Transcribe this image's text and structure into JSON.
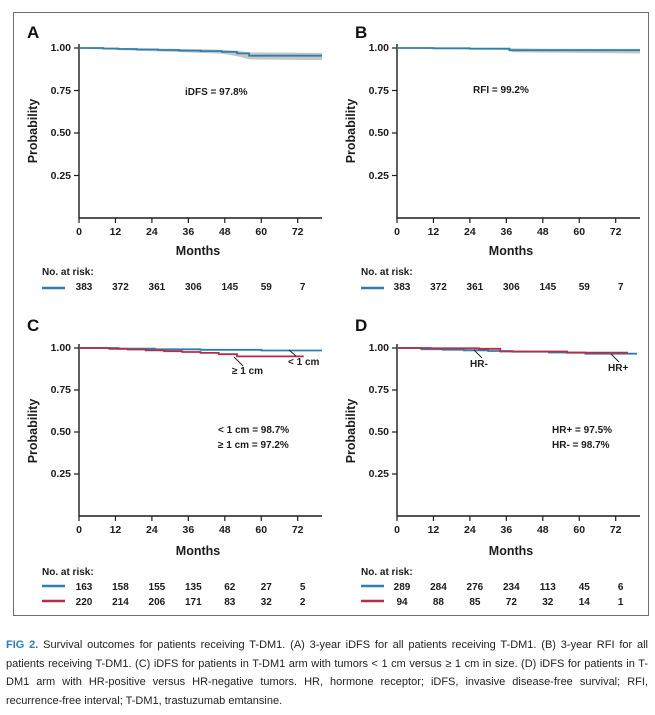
{
  "figure_caption": {
    "label": "FIG 2.",
    "text": "Survival outcomes for patients receiving T-DM1. (A) 3-year iDFS for all patients receiving T-DM1. (B) 3-year RFI for all patients receiving T-DM1. (C) iDFS for patients in T-DM1 arm with tumors < 1 cm versus ≥ 1 cm in size. (D) iDFS for patients in T-DM1 arm with HR-positive versus HR-negative tumors. HR, hormone receptor; iDFS, invasive disease-free survival; RFI, recurrence-free interval; T-DM1, trastuzumab emtansine."
  },
  "colors": {
    "blue": "#2e7fad",
    "red": "#b52e45",
    "band": "#c7c7c7",
    "axis": "#1c1c1c",
    "caption_label": "#2d7cb4",
    "text": "#1c1c1c"
  },
  "chart_data": [
    {
      "panel_label": "A",
      "type": "line",
      "chart_kind": "kaplan-meier",
      "title": "",
      "xlabel": "Months",
      "ylabel": "Probability",
      "x_ticks": [
        0,
        12,
        24,
        36,
        48,
        60,
        72
      ],
      "y_ticks": [
        "1.00",
        "0.75",
        "0.50",
        "0.25"
      ],
      "y_tick_values": [
        1.0,
        0.75,
        0.5,
        0.25
      ],
      "xlim": [
        0,
        80
      ],
      "ylim": [
        0,
        1.02
      ],
      "grid": false,
      "legend_position": "none",
      "annotation_lines": [
        "iDFS = 97.8%"
      ],
      "at_risk_label": "No. at risk:",
      "series": [
        {
          "name": "all-patients-idfs",
          "label": "",
          "color": "blue",
          "steps": [
            [
              0,
              1.0
            ],
            [
              8,
              1.0
            ],
            [
              8,
              0.997
            ],
            [
              13,
              0.997
            ],
            [
              13,
              0.994
            ],
            [
              19,
              0.994
            ],
            [
              19,
              0.991
            ],
            [
              26,
              0.991
            ],
            [
              26,
              0.988
            ],
            [
              33,
              0.988
            ],
            [
              33,
              0.985
            ],
            [
              40,
              0.985
            ],
            [
              40,
              0.982
            ],
            [
              47,
              0.982
            ],
            [
              47,
              0.977
            ],
            [
              52,
              0.977
            ],
            [
              52,
              0.968
            ],
            [
              56,
              0.968
            ],
            [
              56,
              0.955
            ],
            [
              80,
              0.955
            ]
          ],
          "ci_band": {
            "upper": [
              [
                0,
                1.0
              ],
              [
                20,
                0.999
              ],
              [
                40,
                0.993
              ],
              [
                47,
                0.99
              ],
              [
                52,
                0.984
              ],
              [
                56,
                0.974
              ],
              [
                80,
                0.971
              ]
            ],
            "lower": [
              [
                0,
                0.997
              ],
              [
                8,
                0.991
              ],
              [
                19,
                0.984
              ],
              [
                33,
                0.976
              ],
              [
                47,
                0.966
              ],
              [
                52,
                0.951
              ],
              [
                56,
                0.933
              ],
              [
                80,
                0.929
              ]
            ]
          },
          "at_risk": [
            383,
            372,
            361,
            306,
            145,
            59,
            7
          ]
        }
      ]
    },
    {
      "panel_label": "B",
      "type": "line",
      "chart_kind": "kaplan-meier",
      "title": "",
      "xlabel": "Months",
      "ylabel": "Probability",
      "x_ticks": [
        0,
        12,
        24,
        36,
        48,
        60,
        72
      ],
      "y_ticks": [
        "1.00",
        "0.75",
        "0.50",
        "0.25"
      ],
      "y_tick_values": [
        1.0,
        0.75,
        0.5,
        0.25
      ],
      "xlim": [
        0,
        80
      ],
      "ylim": [
        0,
        1.02
      ],
      "grid": false,
      "legend_position": "none",
      "annotation_lines": [
        "RFI = 99.2%"
      ],
      "at_risk_label": "No. at risk:",
      "series": [
        {
          "name": "all-patients-rfi",
          "label": "",
          "color": "blue",
          "steps": [
            [
              0,
              1.0
            ],
            [
              12,
              1.0
            ],
            [
              12,
              0.998
            ],
            [
              24,
              0.998
            ],
            [
              24,
              0.996
            ],
            [
              37,
              0.996
            ],
            [
              37,
              0.987
            ],
            [
              80,
              0.987
            ]
          ],
          "ci_band": {
            "upper": [
              [
                0,
                1.0
              ],
              [
                24,
                1.0
              ],
              [
                37,
                0.998
              ],
              [
                50,
                0.996
              ],
              [
                80,
                0.995
              ]
            ],
            "lower": [
              [
                0,
                0.998
              ],
              [
                12,
                0.995
              ],
              [
                24,
                0.992
              ],
              [
                37,
                0.989
              ],
              [
                38,
                0.975
              ],
              [
                80,
                0.967
              ]
            ]
          },
          "at_risk": [
            383,
            372,
            361,
            306,
            145,
            59,
            7
          ]
        }
      ]
    },
    {
      "panel_label": "C",
      "type": "line",
      "chart_kind": "kaplan-meier",
      "title": "",
      "xlabel": "Months",
      "ylabel": "Probability",
      "x_ticks": [
        0,
        12,
        24,
        36,
        48,
        60,
        72
      ],
      "y_ticks": [
        "1.00",
        "0.75",
        "0.50",
        "0.25"
      ],
      "y_tick_values": [
        1.0,
        0.75,
        0.5,
        0.25
      ],
      "xlim": [
        0,
        80
      ],
      "ylim": [
        0,
        1.02
      ],
      "grid": false,
      "legend_position": "none",
      "annotation_lines": [
        "< 1 cm = 98.7%",
        "≥ 1 cm = 97.2%"
      ],
      "at_risk_label": "No. at risk:",
      "series": [
        {
          "name": "tumor-lt-1cm",
          "label": "< 1 cm",
          "color": "blue",
          "steps": [
            [
              0,
              1.0
            ],
            [
              13,
              1.0
            ],
            [
              13,
              0.996
            ],
            [
              25,
              0.996
            ],
            [
              25,
              0.992
            ],
            [
              40,
              0.992
            ],
            [
              40,
              0.989
            ],
            [
              60,
              0.989
            ],
            [
              60,
              0.985
            ],
            [
              80,
              0.985
            ]
          ],
          "at_risk": [
            163,
            158,
            155,
            135,
            62,
            27,
            5
          ]
        },
        {
          "name": "tumor-ge-1cm",
          "label": "≥ 1 cm",
          "color": "red",
          "steps": [
            [
              0,
              1.0
            ],
            [
              10,
              1.0
            ],
            [
              10,
              0.995
            ],
            [
              16,
              0.995
            ],
            [
              16,
              0.991
            ],
            [
              22,
              0.991
            ],
            [
              22,
              0.986
            ],
            [
              28,
              0.986
            ],
            [
              28,
              0.981
            ],
            [
              34,
              0.981
            ],
            [
              34,
              0.976
            ],
            [
              40,
              0.976
            ],
            [
              40,
              0.971
            ],
            [
              46,
              0.971
            ],
            [
              46,
              0.963
            ],
            [
              52,
              0.963
            ],
            [
              52,
              0.95
            ],
            [
              74,
              0.95
            ]
          ],
          "at_risk": [
            220,
            214,
            206,
            171,
            83,
            32,
            2
          ]
        }
      ]
    },
    {
      "panel_label": "D",
      "type": "line",
      "chart_kind": "kaplan-meier",
      "title": "",
      "xlabel": "Months",
      "ylabel": "Probability",
      "x_ticks": [
        0,
        12,
        24,
        36,
        48,
        60,
        72
      ],
      "y_ticks": [
        "1.00",
        "0.75",
        "0.50",
        "0.25"
      ],
      "y_tick_values": [
        1.0,
        0.75,
        0.5,
        0.25
      ],
      "xlim": [
        0,
        80
      ],
      "ylim": [
        0,
        1.02
      ],
      "grid": false,
      "legend_position": "none",
      "annotation_lines": [
        "HR+ = 97.5%",
        "HR- = 98.7%"
      ],
      "at_risk_label": "No. at risk:",
      "series": [
        {
          "name": "hr-positive",
          "label": "HR+",
          "color": "blue",
          "steps": [
            [
              0,
              1.0
            ],
            [
              8,
              1.0
            ],
            [
              8,
              0.993
            ],
            [
              15,
              0.993
            ],
            [
              15,
              0.99
            ],
            [
              22,
              0.99
            ],
            [
              22,
              0.986
            ],
            [
              30,
              0.986
            ],
            [
              30,
              0.982
            ],
            [
              38,
              0.982
            ],
            [
              38,
              0.978
            ],
            [
              50,
              0.978
            ],
            [
              50,
              0.973
            ],
            [
              62,
              0.973
            ],
            [
              62,
              0.966
            ],
            [
              79,
              0.966
            ]
          ],
          "at_risk": [
            289,
            284,
            276,
            234,
            113,
            45,
            6
          ]
        },
        {
          "name": "hr-negative",
          "label": "HR-",
          "color": "red",
          "steps": [
            [
              0,
              1.0
            ],
            [
              11,
              1.0
            ],
            [
              11,
              0.998
            ],
            [
              27,
              0.998
            ],
            [
              27,
              0.995
            ],
            [
              34,
              0.995
            ],
            [
              34,
              0.979
            ],
            [
              56,
              0.979
            ],
            [
              56,
              0.972
            ],
            [
              76,
              0.972
            ]
          ],
          "at_risk": [
            94,
            88,
            85,
            72,
            32,
            14,
            1
          ]
        }
      ]
    }
  ]
}
